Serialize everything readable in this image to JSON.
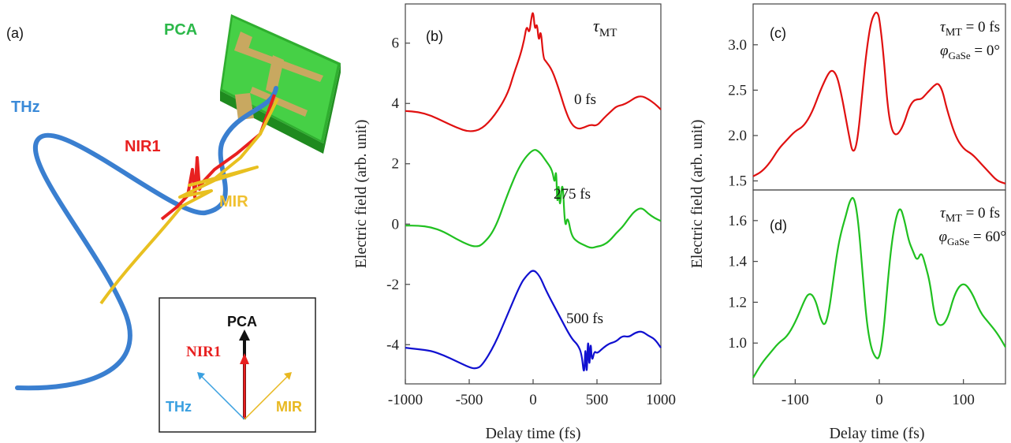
{
  "panel_a": {
    "label": "(a)",
    "pca_label": "PCA",
    "thz_label": "THz",
    "nir_label": "NIR1",
    "mir_label": "MIR",
    "inset": {
      "pca": "PCA",
      "nir": "NIR1",
      "thz": "THz",
      "mir": "MIR"
    },
    "colors": {
      "thz": "#3a7fd0",
      "nir": "#e82020",
      "mir": "#e8c020",
      "pca_green": "#3cc83c",
      "pca_gold": "#c8a050"
    }
  },
  "chart_data": [
    {
      "panel": "(b)",
      "type": "line",
      "xlabel": "Delay time (fs)",
      "ylabel": "Electric field  (arb. unit)",
      "xlim": [
        -1000,
        1000
      ],
      "ylim": [
        -5.3,
        7.3
      ],
      "xticks": [
        "-1000",
        "-500",
        "0",
        "500",
        "1000"
      ],
      "yticks": [
        "-4",
        "-2",
        "0",
        "2",
        "4",
        "6"
      ],
      "legend_title": "τMT",
      "series": [
        {
          "name": "0 fs",
          "color": "#e01010",
          "x": [
            -1000,
            -900,
            -800,
            -700,
            -600,
            -500,
            -400,
            -300,
            -200,
            -150,
            -100,
            -70,
            -50,
            -30,
            -15,
            0,
            15,
            30,
            45,
            60,
            80,
            100,
            150,
            200,
            250,
            300,
            350,
            400,
            450,
            500,
            550,
            600,
            650,
            700,
            750,
            800,
            850,
            900,
            950,
            1000
          ],
          "y": [
            3.75,
            3.72,
            3.6,
            3.4,
            3.2,
            3.05,
            3.15,
            3.6,
            4.3,
            5.0,
            5.6,
            6.1,
            6.6,
            6.3,
            6.8,
            7.1,
            6.4,
            6.7,
            6.0,
            6.5,
            5.5,
            5.4,
            5.1,
            4.5,
            3.8,
            3.3,
            3.15,
            3.2,
            3.3,
            3.25,
            3.5,
            3.7,
            3.9,
            3.95,
            4.05,
            4.2,
            4.25,
            4.15,
            4.0,
            3.8
          ]
        },
        {
          "name": "275 fs",
          "color": "#20c020",
          "x": [
            -1000,
            -900,
            -800,
            -700,
            -600,
            -500,
            -450,
            -400,
            -300,
            -200,
            -100,
            0,
            50,
            100,
            150,
            170,
            180,
            190,
            200,
            210,
            230,
            250,
            270,
            300,
            350,
            400,
            450,
            500,
            550,
            600,
            650,
            700,
            750,
            800,
            850,
            900,
            950,
            1000
          ],
          "y": [
            -0.05,
            -0.05,
            -0.1,
            -0.25,
            -0.5,
            -0.7,
            -0.75,
            -0.7,
            -0.2,
            1.0,
            2.0,
            2.5,
            2.4,
            2.1,
            1.8,
            1.3,
            1.9,
            0.5,
            1.5,
            0.4,
            1.6,
            -0.2,
            0.3,
            -0.4,
            -0.6,
            -0.7,
            -0.8,
            -0.75,
            -0.7,
            -0.55,
            -0.3,
            -0.1,
            0.2,
            0.45,
            0.55,
            0.35,
            0.2,
            0.1
          ]
        },
        {
          "name": "500 fs",
          "color": "#1010d0",
          "x": [
            -1000,
            -900,
            -800,
            -700,
            -600,
            -500,
            -450,
            -400,
            -300,
            -200,
            -100,
            -50,
            0,
            50,
            100,
            200,
            300,
            350,
            380,
            400,
            410,
            420,
            430,
            440,
            450,
            460,
            480,
            500,
            550,
            600,
            650,
            700,
            750,
            800,
            850,
            900,
            950,
            1000
          ],
          "y": [
            -4.1,
            -4.15,
            -4.2,
            -4.35,
            -4.55,
            -4.75,
            -4.8,
            -4.7,
            -4.0,
            -3.0,
            -2.0,
            -1.7,
            -1.5,
            -1.7,
            -2.2,
            -3.0,
            -3.8,
            -4.0,
            -4.3,
            -5.1,
            -3.9,
            -5.2,
            -3.6,
            -4.9,
            -3.8,
            -4.6,
            -4.2,
            -4.3,
            -4.1,
            -3.95,
            -3.9,
            -3.7,
            -3.75,
            -3.6,
            -3.55,
            -3.7,
            -3.8,
            -4.1
          ]
        }
      ],
      "series_labels": [
        "0 fs",
        "275 fs",
        "500 fs"
      ]
    },
    {
      "panel": "(c)",
      "type": "line",
      "ylabel": "Electric field  (arb. unit)",
      "xlim": [
        -150,
        150
      ],
      "ylim": [
        1.4,
        3.45
      ],
      "yticks": [
        "1.5",
        "2.0",
        "2.5",
        "3.0"
      ],
      "annotation": {
        "line1": "τMT = 0 fs",
        "line2": "φGaSe = 0°"
      },
      "series": [
        {
          "color": "#e01010",
          "x": [
            -150,
            -140,
            -130,
            -120,
            -110,
            -100,
            -90,
            -80,
            -70,
            -60,
            -55,
            -50,
            -45,
            -40,
            -35,
            -32,
            -28,
            -24,
            -20,
            -15,
            -10,
            -5,
            -2,
            0,
            5,
            10,
            15,
            20,
            25,
            30,
            35,
            40,
            45,
            50,
            55,
            60,
            65,
            70,
            75,
            80,
            90,
            100,
            110,
            120,
            130,
            140,
            150
          ],
          "y": [
            1.55,
            1.6,
            1.7,
            1.85,
            1.95,
            2.05,
            2.1,
            2.25,
            2.5,
            2.7,
            2.72,
            2.65,
            2.45,
            2.2,
            1.95,
            1.82,
            1.85,
            2.1,
            2.5,
            2.95,
            3.25,
            3.36,
            3.35,
            3.3,
            2.9,
            2.3,
            2.05,
            2.0,
            2.05,
            2.15,
            2.3,
            2.38,
            2.4,
            2.4,
            2.45,
            2.5,
            2.55,
            2.58,
            2.5,
            2.3,
            2.0,
            1.85,
            1.8,
            1.7,
            1.6,
            1.5,
            1.47
          ]
        }
      ]
    },
    {
      "panel": "(d)",
      "type": "line",
      "xlabel": "Delay time (fs)",
      "xlim": [
        -150,
        150
      ],
      "ylim": [
        0.8,
        1.75
      ],
      "xticks": [
        "-100",
        "0",
        "100"
      ],
      "yticks": [
        "1.0",
        "1.2",
        "1.4",
        "1.6"
      ],
      "annotation": {
        "line1": "τMT = 0 fs",
        "line2": "φGaSe = 60°"
      },
      "series": [
        {
          "color": "#20c020",
          "x": [
            -150,
            -140,
            -130,
            -120,
            -110,
            -100,
            -90,
            -85,
            -80,
            -75,
            -70,
            -65,
            -60,
            -55,
            -50,
            -45,
            -40,
            -35,
            -30,
            -25,
            -20,
            -15,
            -10,
            -5,
            0,
            5,
            10,
            15,
            20,
            25,
            30,
            35,
            40,
            45,
            50,
            55,
            60,
            65,
            70,
            80,
            90,
            100,
            110,
            120,
            130,
            140,
            150
          ],
          "y": [
            0.83,
            0.9,
            0.95,
            1.0,
            1.03,
            1.1,
            1.2,
            1.24,
            1.24,
            1.2,
            1.12,
            1.08,
            1.15,
            1.3,
            1.45,
            1.55,
            1.62,
            1.7,
            1.72,
            1.6,
            1.35,
            1.1,
            0.98,
            0.93,
            0.92,
            1.05,
            1.3,
            1.5,
            1.62,
            1.67,
            1.6,
            1.5,
            1.45,
            1.4,
            1.45,
            1.38,
            1.3,
            1.15,
            1.08,
            1.1,
            1.25,
            1.3,
            1.25,
            1.15,
            1.1,
            1.05,
            0.98
          ]
        }
      ]
    }
  ]
}
